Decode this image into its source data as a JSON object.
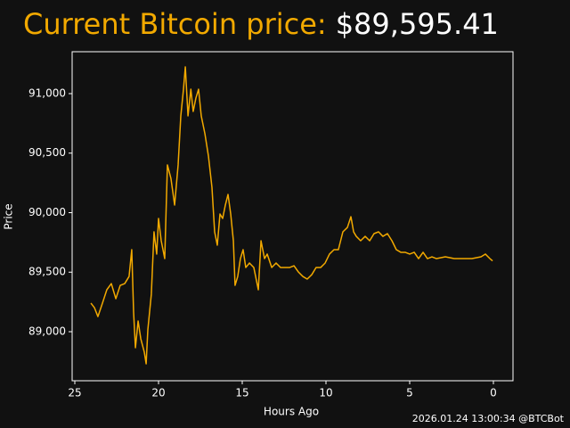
{
  "chart_data": {
    "type": "line",
    "title": "Current Bitcoin price:",
    "price_label": "$89,595.41",
    "footer": "2026.01.24 13:00:34 @BTCBot",
    "x_label": "Hours Ago",
    "y_label": "Price",
    "x": [
      24.04,
      23.83,
      23.62,
      23.35,
      23.09,
      22.82,
      22.55,
      22.29,
      22.02,
      21.76,
      21.6,
      21.49,
      21.38,
      21.22,
      21.06,
      20.85,
      20.74,
      20.64,
      20.43,
      20.27,
      20.11,
      20.0,
      19.84,
      19.63,
      19.47,
      19.26,
      19.04,
      18.83,
      18.67,
      18.51,
      18.4,
      18.24,
      18.07,
      17.93,
      17.77,
      17.61,
      17.45,
      17.23,
      17.02,
      16.81,
      16.65,
      16.49,
      16.33,
      16.17,
      16.01,
      15.85,
      15.69,
      15.53,
      15.43,
      15.27,
      15.11,
      14.95,
      14.79,
      14.57,
      14.31,
      14.04,
      13.88,
      13.67,
      13.51,
      13.24,
      12.98,
      12.71,
      12.45,
      12.18,
      11.91,
      11.65,
      11.38,
      11.12,
      10.85,
      10.59,
      10.32,
      10.05,
      9.79,
      9.52,
      9.26,
      8.99,
      8.72,
      8.51,
      8.35,
      8.19,
      7.93,
      7.66,
      7.39,
      7.13,
      6.86,
      6.6,
      6.33,
      6.06,
      5.8,
      5.53,
      5.27,
      5.0,
      4.73,
      4.47,
      4.2,
      3.94,
      3.67,
      3.4,
      2.87,
      2.34,
      1.81,
      1.28,
      0.74,
      0.48,
      0.21,
      0.05
    ],
    "series": [
      {
        "name": "Price",
        "color": "#f2a900",
        "values": [
          89240,
          89202,
          89127,
          89240,
          89352,
          89404,
          89277,
          89389,
          89404,
          89464,
          89689,
          89165,
          88865,
          89090,
          88940,
          88828,
          88730,
          89015,
          89315,
          89839,
          89652,
          89951,
          89764,
          89614,
          90401,
          90288,
          90064,
          90401,
          90813,
          91037,
          91225,
          90813,
          91037,
          90850,
          90962,
          91037,
          90813,
          90663,
          90476,
          90213,
          89839,
          89727,
          89989,
          89951,
          90064,
          90153,
          89989,
          89764,
          89389,
          89464,
          89614,
          89689,
          89539,
          89577,
          89539,
          89352,
          89764,
          89614,
          89652,
          89539,
          89577,
          89539,
          89539,
          89539,
          89554,
          89502,
          89464,
          89442,
          89479,
          89539,
          89539,
          89577,
          89652,
          89689,
          89689,
          89839,
          89876,
          89966,
          89839,
          89801,
          89764,
          89801,
          89764,
          89824,
          89839,
          89801,
          89824,
          89764,
          89689,
          89667,
          89667,
          89652,
          89667,
          89614,
          89667,
          89614,
          89629,
          89614,
          89629,
          89614,
          89614,
          89614,
          89629,
          89652,
          89614,
          89595
        ]
      }
    ],
    "xlim": [
      25.16,
      -1.17
    ],
    "ylim": [
      88588,
      91352
    ],
    "xticks": [
      25,
      20,
      15,
      10,
      5,
      0
    ],
    "yticks": [
      {
        "value": 89000,
        "label": "89,000"
      },
      {
        "value": 89500,
        "label": "89,500"
      },
      {
        "value": 90000,
        "label": "90,000"
      },
      {
        "value": 90500,
        "label": "90,500"
      },
      {
        "value": 91000,
        "label": "91,000"
      }
    ],
    "grid": false
  }
}
